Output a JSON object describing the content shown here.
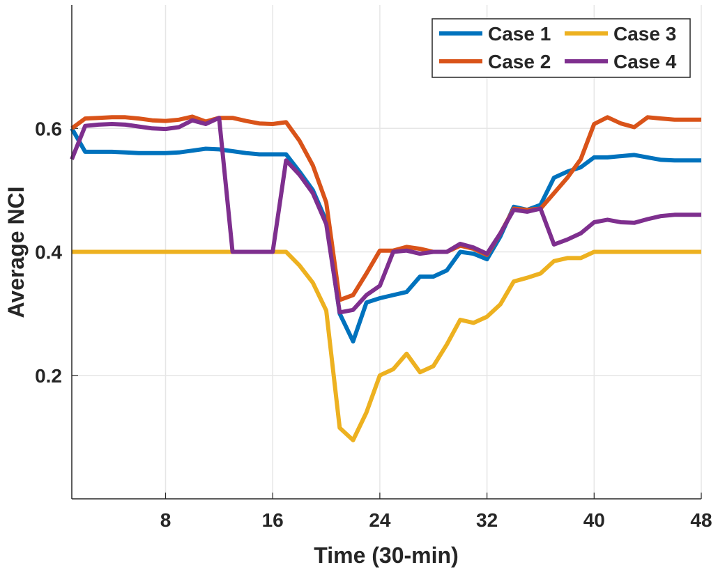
{
  "chart_data": {
    "type": "line",
    "title": "",
    "xlabel": "Time (30-min)",
    "ylabel": "Average NCI",
    "xlim": [
      1,
      48
    ],
    "ylim": [
      0,
      0.8
    ],
    "xticks": [
      8,
      16,
      24,
      32,
      40,
      48
    ],
    "yticks": [
      0.2,
      0.4,
      0.6
    ],
    "grid": true,
    "legend_position": "top-right",
    "x": [
      1,
      2,
      3,
      4,
      5,
      6,
      7,
      8,
      9,
      10,
      11,
      12,
      13,
      14,
      15,
      16,
      17,
      18,
      19,
      20,
      21,
      22,
      23,
      24,
      25,
      26,
      27,
      28,
      29,
      30,
      31,
      32,
      33,
      34,
      35,
      36,
      37,
      38,
      39,
      40,
      41,
      42,
      43,
      44,
      45,
      46,
      47,
      48
    ],
    "series": [
      {
        "name": "Case 1",
        "color": "#0072BD",
        "values": [
          0.6,
          0.562,
          0.562,
          0.562,
          0.561,
          0.56,
          0.56,
          0.56,
          0.561,
          0.564,
          0.567,
          0.566,
          0.563,
          0.56,
          0.558,
          0.558,
          0.558,
          0.53,
          0.5,
          0.45,
          0.3,
          0.255,
          0.318,
          0.325,
          0.33,
          0.335,
          0.36,
          0.36,
          0.37,
          0.4,
          0.397,
          0.388,
          0.425,
          0.473,
          0.468,
          0.476,
          0.52,
          0.53,
          0.537,
          0.553,
          0.553,
          0.555,
          0.557,
          0.553,
          0.549,
          0.548,
          0.548,
          0.548
        ]
      },
      {
        "name": "Case 2",
        "color": "#D95319",
        "values": [
          0.6,
          0.616,
          0.617,
          0.618,
          0.618,
          0.616,
          0.613,
          0.612,
          0.614,
          0.619,
          0.611,
          0.617,
          0.617,
          0.612,
          0.608,
          0.607,
          0.61,
          0.58,
          0.54,
          0.48,
          0.322,
          0.33,
          0.365,
          0.402,
          0.402,
          0.408,
          0.405,
          0.4,
          0.4,
          0.41,
          0.405,
          0.395,
          0.43,
          0.47,
          0.468,
          0.47,
          0.495,
          0.52,
          0.55,
          0.607,
          0.618,
          0.608,
          0.602,
          0.618,
          0.616,
          0.614,
          0.614,
          0.614
        ]
      },
      {
        "name": "Case 3",
        "color": "#EDB120",
        "values": [
          0.4,
          0.4,
          0.4,
          0.4,
          0.4,
          0.4,
          0.4,
          0.4,
          0.4,
          0.4,
          0.4,
          0.4,
          0.4,
          0.4,
          0.4,
          0.4,
          0.4,
          0.378,
          0.35,
          0.305,
          0.115,
          0.095,
          0.14,
          0.2,
          0.21,
          0.235,
          0.205,
          0.215,
          0.25,
          0.29,
          0.285,
          0.295,
          0.315,
          0.352,
          0.358,
          0.365,
          0.385,
          0.39,
          0.39,
          0.4,
          0.4,
          0.4,
          0.4,
          0.4,
          0.4,
          0.4,
          0.4,
          0.4
        ]
      },
      {
        "name": "Case 4",
        "color": "#7E2F8E",
        "values": [
          0.55,
          0.604,
          0.606,
          0.607,
          0.606,
          0.603,
          0.6,
          0.599,
          0.602,
          0.613,
          0.607,
          0.617,
          0.4,
          0.4,
          0.4,
          0.4,
          0.548,
          0.525,
          0.495,
          0.445,
          0.302,
          0.306,
          0.33,
          0.345,
          0.4,
          0.402,
          0.397,
          0.4,
          0.4,
          0.413,
          0.407,
          0.397,
          0.43,
          0.468,
          0.465,
          0.47,
          0.412,
          0.42,
          0.43,
          0.448,
          0.452,
          0.448,
          0.447,
          0.453,
          0.458,
          0.46,
          0.46,
          0.46
        ]
      }
    ]
  }
}
